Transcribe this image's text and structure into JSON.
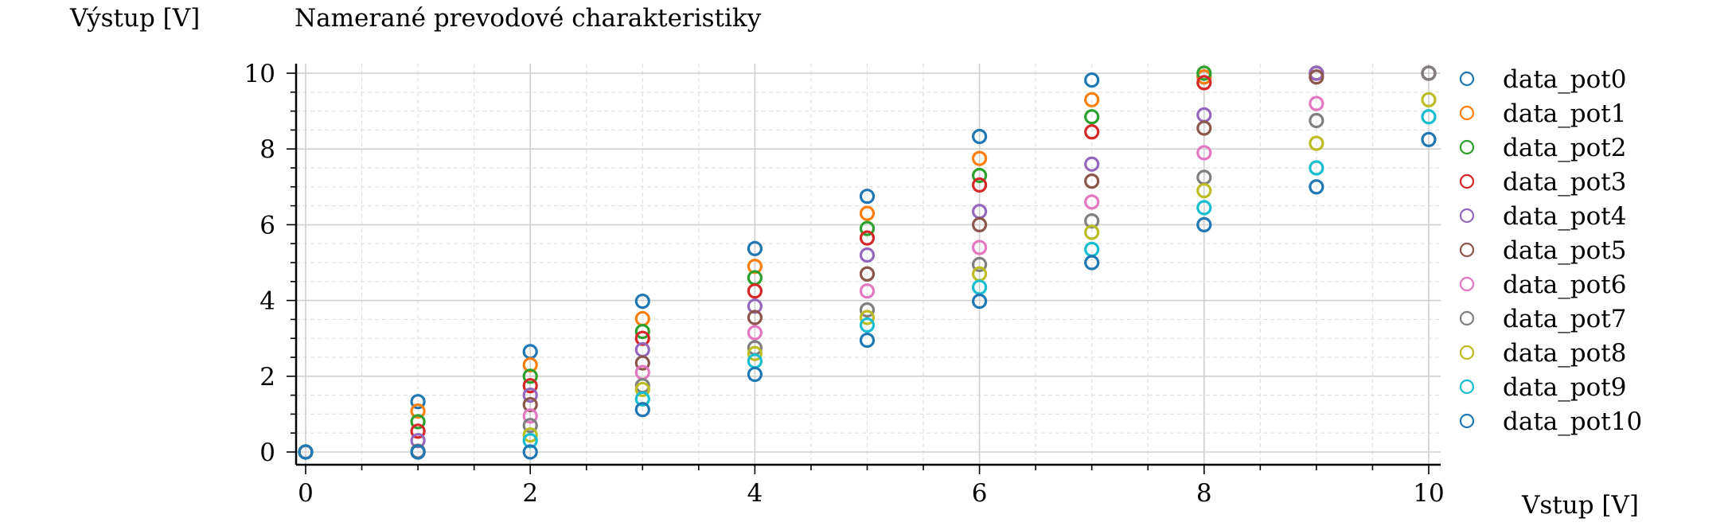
{
  "chart_data": {
    "type": "scatter",
    "title": "Namerané prevodové charakteristiky",
    "xlabel": "Vstup [V]",
    "ylabel": "Výstup [V]",
    "xlim": [
      -0.2,
      10.1
    ],
    "ylim": [
      -0.3,
      10.3
    ],
    "x_ticks": [
      0,
      2,
      4,
      6,
      8,
      10
    ],
    "y_ticks": [
      0,
      2,
      4,
      6,
      8,
      10
    ],
    "x_tick_labels": [
      "0",
      "2",
      "4",
      "6",
      "8",
      "10"
    ],
    "y_tick_labels": [
      "0",
      "2",
      "4",
      "6",
      "8",
      "10"
    ],
    "grid": true,
    "legend_position": "right",
    "marker": "open-circle",
    "series": [
      {
        "name": "data_pot0",
        "color": "#1f77b4",
        "x": [
          0,
          1,
          2,
          3,
          4,
          5,
          6,
          7,
          8,
          9,
          10
        ],
        "y": [
          0,
          1.33,
          2.65,
          3.98,
          5.37,
          6.75,
          8.33,
          9.82,
          9.9,
          10.0,
          10.0
        ]
      },
      {
        "name": "data_pot1",
        "color": "#ff7f0e",
        "x": [
          0,
          1,
          2,
          3,
          4,
          5,
          6,
          7,
          8,
          9,
          10
        ],
        "y": [
          0,
          1.08,
          2.3,
          3.52,
          4.9,
          6.3,
          7.75,
          9.3,
          9.9,
          10.0,
          10.0
        ]
      },
      {
        "name": "data_pot2",
        "color": "#2ca02c",
        "x": [
          0,
          1,
          2,
          3,
          4,
          5,
          6,
          7,
          8,
          9,
          10
        ],
        "y": [
          0,
          0.8,
          2.0,
          3.18,
          4.6,
          5.9,
          7.3,
          8.85,
          10.0,
          10.0,
          10.0
        ]
      },
      {
        "name": "data_pot3",
        "color": "#d62728",
        "x": [
          0,
          1,
          2,
          3,
          4,
          5,
          6,
          7,
          8,
          9,
          10
        ],
        "y": [
          0,
          0.55,
          1.75,
          3.0,
          4.25,
          5.65,
          7.05,
          8.45,
          9.75,
          10.0,
          10.0
        ]
      },
      {
        "name": "data_pot4",
        "color": "#9467bd",
        "x": [
          0,
          1,
          2,
          3,
          4,
          5,
          6,
          7,
          8,
          9,
          10
        ],
        "y": [
          0,
          0.3,
          1.5,
          2.7,
          3.85,
          5.2,
          6.35,
          7.6,
          8.9,
          10.0,
          10.0
        ]
      },
      {
        "name": "data_pot5",
        "color": "#8c564b",
        "x": [
          0,
          1,
          2,
          3,
          4,
          5,
          6,
          7,
          8,
          9,
          10
        ],
        "y": [
          0,
          0.02,
          1.25,
          2.35,
          3.55,
          4.7,
          6.0,
          7.15,
          8.55,
          9.9,
          10.0
        ]
      },
      {
        "name": "data_pot6",
        "color": "#e377c2",
        "x": [
          0,
          1,
          2,
          3,
          4,
          5,
          6,
          7,
          8,
          9,
          10
        ],
        "y": [
          0,
          0,
          0.95,
          2.1,
          3.15,
          4.25,
          5.4,
          6.6,
          7.9,
          9.2,
          10.0
        ]
      },
      {
        "name": "data_pot7",
        "color": "#7f7f7f",
        "x": [
          0,
          1,
          2,
          3,
          4,
          5,
          6,
          7,
          8,
          9,
          10
        ],
        "y": [
          0,
          0,
          0.7,
          1.75,
          2.75,
          3.75,
          4.95,
          6.1,
          7.25,
          8.75,
          10.0
        ]
      },
      {
        "name": "data_pot8",
        "color": "#bcbd22",
        "x": [
          0,
          1,
          2,
          3,
          4,
          5,
          6,
          7,
          8,
          9,
          10
        ],
        "y": [
          0,
          0,
          0.45,
          1.65,
          2.6,
          3.55,
          4.7,
          5.8,
          6.9,
          8.15,
          9.3
        ]
      },
      {
        "name": "data_pot9",
        "color": "#17becf",
        "x": [
          0,
          1,
          2,
          3,
          4,
          5,
          6,
          7,
          8,
          9,
          10
        ],
        "y": [
          0,
          0,
          0.3,
          1.4,
          2.4,
          3.35,
          4.35,
          5.35,
          6.45,
          7.5,
          8.85
        ]
      },
      {
        "name": "data_pot10",
        "color": "#1f77b4",
        "x": [
          0,
          1,
          2,
          3,
          4,
          5,
          6,
          7,
          8,
          9,
          10
        ],
        "y": [
          0,
          0,
          0,
          1.12,
          2.05,
          2.95,
          3.98,
          5.0,
          6.0,
          7.0,
          8.25
        ]
      }
    ]
  }
}
